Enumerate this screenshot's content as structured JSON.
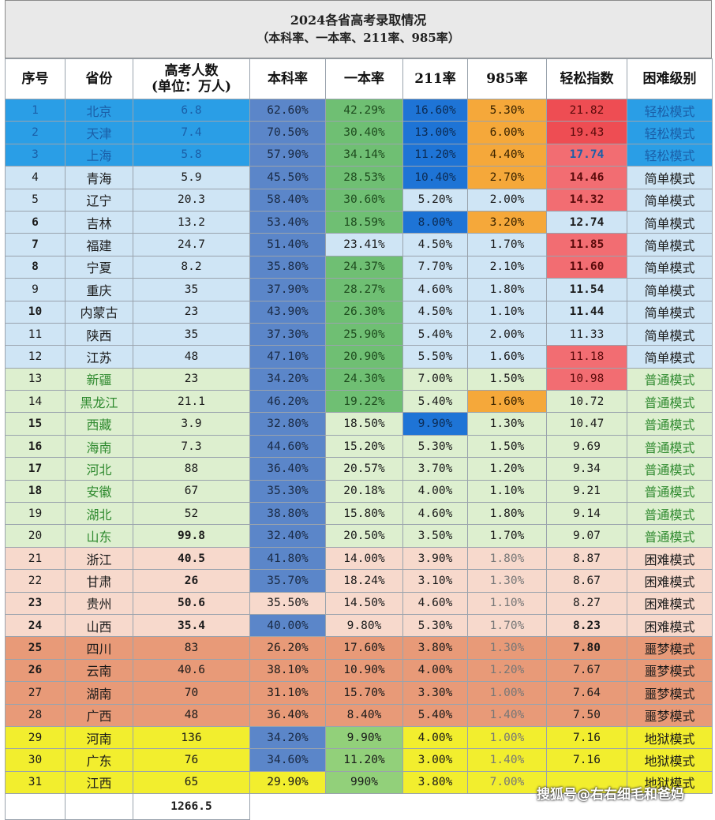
{
  "title_line1": "2024各省高考录取情况",
  "title_line2": "（本科率、一本率、211率、985率）",
  "headers": [
    "序号",
    "省份",
    "高考人数\n(单位：万人)",
    "本科率",
    "一本率",
    "211率",
    "985率",
    "轻松指数",
    "困难级别"
  ],
  "rows": [
    [
      "1",
      "北京",
      "6.8",
      "62.60%",
      "42.29%",
      "16.60%",
      "5.30%",
      "21.82",
      "轻松模式"
    ],
    [
      "2",
      "天津",
      "7.4",
      "70.50%",
      "30.40%",
      "13.00%",
      "6.00%",
      "19.43",
      "轻松模式"
    ],
    [
      "3",
      "上海",
      "5.8",
      "57.90%",
      "34.14%",
      "11.20%",
      "4.40%",
      "17.74",
      "轻松模式"
    ],
    [
      "4",
      "青海",
      "5.9",
      "45.50%",
      "28.53%",
      "10.40%",
      "2.70%",
      "14.46",
      "简单模式"
    ],
    [
      "5",
      "辽宁",
      "20.3",
      "58.40%",
      "30.60%",
      "5.20%",
      "2.00%",
      "14.32",
      "简单模式"
    ],
    [
      "6",
      "吉林",
      "13.2",
      "53.40%",
      "18.59%",
      "8.00%",
      "3.20%",
      "12.74",
      "简单模式"
    ],
    [
      "7",
      "福建",
      "24.7",
      "51.40%",
      "23.41%",
      "4.50%",
      "1.70%",
      "11.85",
      "简单模式"
    ],
    [
      "8",
      "宁夏",
      "8.2",
      "35.80%",
      "24.37%",
      "7.70%",
      "2.10%",
      "11.60",
      "简单模式"
    ],
    [
      "9",
      "重庆",
      "35",
      "37.90%",
      "28.27%",
      "4.60%",
      "1.80%",
      "11.54",
      "简单模式"
    ],
    [
      "10",
      "内蒙古",
      "23",
      "43.90%",
      "26.30%",
      "4.50%",
      "1.10%",
      "11.44",
      "简单模式"
    ],
    [
      "11",
      "陕西",
      "35",
      "37.30%",
      "25.90%",
      "5.40%",
      "2.00%",
      "11.33",
      "简单模式"
    ],
    [
      "12",
      "江苏",
      "48",
      "47.10%",
      "20.90%",
      "5.50%",
      "1.60%",
      "11.18",
      "简单模式"
    ],
    [
      "13",
      "新疆",
      "23",
      "34.20%",
      "24.30%",
      "7.00%",
      "1.50%",
      "10.98",
      "普通模式"
    ],
    [
      "14",
      "黑龙江",
      "21.1",
      "46.20%",
      "19.22%",
      "5.40%",
      "1.60%",
      "10.72",
      "普通模式"
    ],
    [
      "15",
      "西藏",
      "3.9",
      "32.80%",
      "18.50%",
      "9.90%",
      "1.30%",
      "10.47",
      "普通模式"
    ],
    [
      "16",
      "海南",
      "7.3",
      "44.60%",
      "15.20%",
      "5.30%",
      "1.50%",
      "9.69",
      "普通模式"
    ],
    [
      "17",
      "河北",
      "88",
      "36.40%",
      "20.57%",
      "3.70%",
      "1.20%",
      "9.34",
      "普通模式"
    ],
    [
      "18",
      "安徽",
      "67",
      "35.30%",
      "20.18%",
      "4.00%",
      "1.10%",
      "9.21",
      "普通模式"
    ],
    [
      "19",
      "湖北",
      "52",
      "38.80%",
      "15.80%",
      "4.60%",
      "1.80%",
      "9.14",
      "普通模式"
    ],
    [
      "20",
      "山东",
      "99.8",
      "32.40%",
      "20.50%",
      "3.50%",
      "1.70%",
      "9.07",
      "普通模式"
    ],
    [
      "21",
      "浙江",
      "40.5",
      "41.80%",
      "14.00%",
      "3.90%",
      "1.80%",
      "8.87",
      "困难模式"
    ],
    [
      "22",
      "甘肃",
      "26",
      "35.70%",
      "18.24%",
      "3.10%",
      "1.30%",
      "8.67",
      "困难模式"
    ],
    [
      "23",
      "贵州",
      "50.6",
      "35.50%",
      "14.50%",
      "4.60%",
      "1.10%",
      "8.27",
      "困难模式"
    ],
    [
      "24",
      "山西",
      "35.4",
      "40.00%",
      "9.80%",
      "5.30%",
      "1.70%",
      "8.23",
      "困难模式"
    ],
    [
      "25",
      "四川",
      "83",
      "26.20%",
      "17.60%",
      "3.80%",
      "1.30%",
      "7.80",
      "噩梦模式"
    ],
    [
      "26",
      "云南",
      "40.6",
      "38.10%",
      "10.90%",
      "4.00%",
      "1.20%",
      "7.67",
      "噩梦模式"
    ],
    [
      "27",
      "湖南",
      "70",
      "31.10%",
      "15.70%",
      "3.30%",
      "1.00%",
      "7.64",
      "噩梦模式"
    ],
    [
      "28",
      "广西",
      "48",
      "36.40%",
      "8.40%",
      "5.40%",
      "1.40%",
      "7.50",
      "噩梦模式"
    ],
    [
      "29",
      "河南",
      "136",
      "34.20%",
      "9.90%",
      "4.00%",
      "1.00%",
      "7.16",
      "地狱模式"
    ],
    [
      "30",
      "广东",
      "76",
      "34.60%",
      "11.20%",
      "3.00%",
      "1.40%",
      "7.16",
      "地狱模式"
    ],
    [
      "31",
      "江西",
      "65",
      "29.90%",
      "990%",
      "3.80%",
      "7.00%",
      "",
      "地狱模式"
    ]
  ],
  "total_label": "1266.5",
  "watermark": "搜狐号@右右细毛和爸妈",
  "colors": {
    "tier_easy": "#2a9ee6",
    "tier_simple": "#cfe5f5",
    "tier_normal": "#ddefcf",
    "tier_hard": "#f7d9cc",
    "tier_nightmare": "#e89a78",
    "tier_hell": "#f2ee2e",
    "benke_blue": "#5b86c9",
    "yiben_green": "#6fbf73",
    "yiben_green_light": "#92d07a",
    "rate211_blue": "#1e74d6",
    "rate985_orange": "#f5a83a",
    "index_red": "#ee4d53",
    "index_red_light": "#f26d72"
  }
}
